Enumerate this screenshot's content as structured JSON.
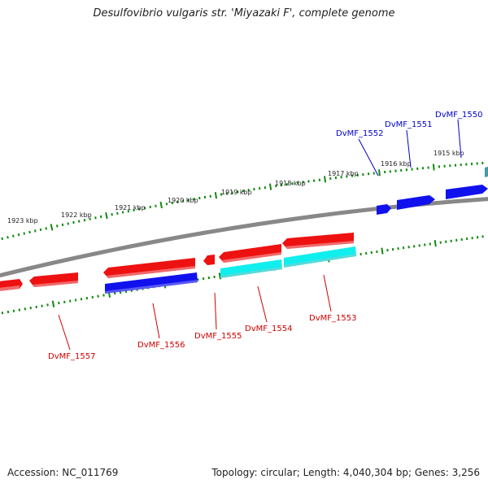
{
  "title": "Desulfovibrio vulgaris str. 'Miyazaki F', complete genome",
  "footer": {
    "accession": "Accession: NC_011769",
    "summary": "Topology: circular; Length: 4,040,304 bp; Genes: 3,256"
  },
  "colors": {
    "backbone": "#888888",
    "tick": "#118811",
    "red_gene": "#ee1111",
    "blue_gene": "#1111ee",
    "cyan_gene": "#11eeee",
    "teal_gene": "#4499aa",
    "label_red": "#cc0000",
    "label_blue": "#0000cc"
  },
  "kbp_labels": [
    "1923 kbp",
    "1922 kbp",
    "1921 kbp",
    "1920 kbp",
    "1919 kbp",
    "1918 kbp",
    "1917 kbp",
    "1916 kbp",
    "1915 kbp"
  ],
  "gene_labels": [
    {
      "text": "DvMF_1557",
      "color": "red"
    },
    {
      "text": "DvMF_1556",
      "color": "red"
    },
    {
      "text": "DvMF_1555",
      "color": "red"
    },
    {
      "text": "DvMF_1554",
      "color": "red"
    },
    {
      "text": "DvMF_1553",
      "color": "red"
    },
    {
      "text": "DvMF_1552",
      "color": "blue"
    },
    {
      "text": "DvMF_1551",
      "color": "blue"
    },
    {
      "text": "DvMF_1550",
      "color": "blue"
    }
  ]
}
